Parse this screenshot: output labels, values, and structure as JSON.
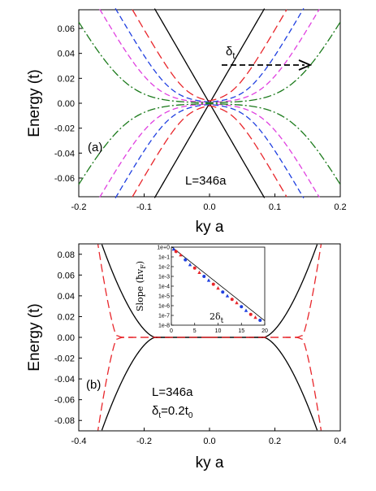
{
  "chart_data": [
    {
      "type": "line",
      "panel_label": "(a)",
      "xlabel": "ky a",
      "ylabel": "Energy (t)",
      "xlim": [
        -0.2,
        0.2
      ],
      "ylim": [
        -0.075,
        0.075
      ],
      "x_ticks": [
        "-0.2",
        "-0.1",
        "0.0",
        "0.1",
        "0.2"
      ],
      "y_ticks": [
        "0.06",
        "0.04",
        "0.02",
        "0.00",
        "-0.02",
        "-0.04",
        "-0.06"
      ],
      "annotation_L": "L=346a",
      "arrow_label": "δ",
      "arrow_label_sub": "t",
      "series": [
        {
          "color": "#000000",
          "dash": "solid",
          "crossing": 0.0,
          "cross_energy": 0.0
        },
        {
          "color": "#e8262b",
          "dash": "long-dash",
          "crossing": 0.035,
          "cross_energy": 0.002
        },
        {
          "color": "#1f3fe0",
          "dash": "dash",
          "crossing": 0.06,
          "cross_energy": 0.0015
        },
        {
          "color": "#e040e0",
          "dash": "dash",
          "crossing": 0.085,
          "cross_energy": 0.001
        },
        {
          "color": "#1b7a1b",
          "dash": "dash-dot",
          "crossing": 0.13,
          "cross_energy": 0.001
        }
      ]
    },
    {
      "type": "line",
      "panel_label": "(b)",
      "xlabel": "ky a",
      "ylabel": "Energy (t)",
      "xlim": [
        -0.4,
        0.4
      ],
      "ylim": [
        -0.09,
        0.09
      ],
      "x_ticks": [
        "-0.4",
        "-0.2",
        "0.0",
        "0.2",
        "0.4"
      ],
      "y_ticks": [
        "0.08",
        "0.06",
        "0.04",
        "0.02",
        "0.00",
        "-0.02",
        "-0.04",
        "-0.06",
        "-0.08"
      ],
      "annotation_L": "L=346a",
      "annotation_delta": "δ",
      "annotation_delta_sub": "t",
      "annotation_delta_value": "=0.2t",
      "annotation_delta_value_sub": "0",
      "series": [
        {
          "color": "#000000",
          "dash": "solid",
          "flat_edge": 0.17,
          "outer_edge": 0.33
        },
        {
          "color": "#e8262b",
          "dash": "long-dash",
          "flat_edge": 0.3,
          "outer_edge": 0.35
        }
      ],
      "inset": {
        "ylabel": "Slope (ħv",
        "ylabel_sub": "F",
        "ylabel_end": ")",
        "curve_label": "2δ",
        "curve_label_sub": "t",
        "x_ticks": [
          "0",
          "5",
          "10",
          "15",
          "20"
        ],
        "y_ticks": [
          "1e+0",
          "1e-1",
          "1e-2",
          "1e-3",
          "1e-4",
          "1e-5",
          "1e-6",
          "1e-7",
          "1e-8"
        ],
        "xlim": [
          0,
          20
        ],
        "ylog_range": [
          -8,
          0
        ],
        "points_x": [
          0.5,
          1,
          2,
          3,
          4,
          5,
          6,
          7,
          8,
          9,
          10,
          11,
          12,
          13,
          14,
          15,
          16,
          17,
          18,
          19
        ],
        "points_y_exp": [
          -0.2,
          -0.45,
          -0.8,
          -1.3,
          -1.8,
          -2.15,
          -2.6,
          -3.0,
          -3.4,
          -3.8,
          -4.2,
          -4.6,
          -5.0,
          -5.35,
          -5.7,
          -6.1,
          -6.5,
          -6.9,
          -7.2,
          -7.5
        ]
      }
    }
  ]
}
